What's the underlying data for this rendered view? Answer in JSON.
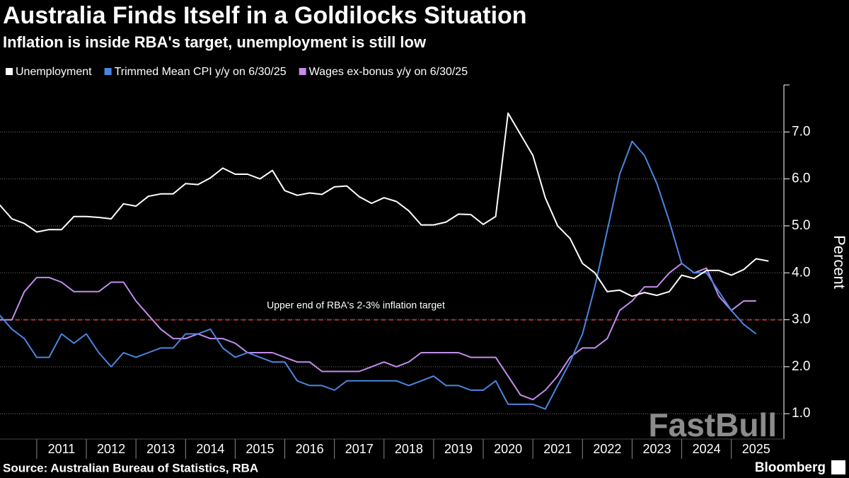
{
  "chart_data": {
    "type": "line",
    "title": "Australia Finds Itself in a Goldilocks Situation",
    "subtitle": "Inflation is inside RBA's target, unemployment is still low",
    "y_axis_label": "Percent",
    "source": "Source: Australian Bureau of Statistics, RBA",
    "brand": "Bloomberg",
    "watermark": "FastBull",
    "target_line": {
      "value": 3,
      "label": "Upper end of RBA's 2-3% inflation target",
      "color": "#b0303a"
    },
    "xlim": [
      2010.26,
      2026.06
    ],
    "xticks": [
      {
        "value": 2011,
        "label": "2011"
      },
      {
        "value": 2012,
        "label": "2012"
      },
      {
        "value": 2013,
        "label": "2013"
      },
      {
        "value": 2014,
        "label": "2014"
      },
      {
        "value": 2015,
        "label": "2015"
      },
      {
        "value": 2016,
        "label": "2016"
      },
      {
        "value": 2017,
        "label": "2017"
      },
      {
        "value": 2018,
        "label": "2018"
      },
      {
        "value": 2019,
        "label": "2019"
      },
      {
        "value": 2020,
        "label": "2020"
      },
      {
        "value": 2021,
        "label": "2021"
      },
      {
        "value": 2022,
        "label": "2022"
      },
      {
        "value": 2023,
        "label": "2023"
      },
      {
        "value": 2024,
        "label": "2024"
      },
      {
        "value": 2025,
        "label": "2025"
      }
    ],
    "ylim": [
      0.46,
      8.0
    ],
    "yticks": [
      {
        "value": 1,
        "label": "1.0"
      },
      {
        "value": 2,
        "label": "2.0"
      },
      {
        "value": 3,
        "label": "3.0"
      },
      {
        "value": 4,
        "label": "4.0"
      },
      {
        "value": 5,
        "label": "5.0"
      },
      {
        "value": 6,
        "label": "6.0"
      },
      {
        "value": 7,
        "label": "7.0"
      }
    ],
    "grid": true,
    "legend": "top-left",
    "x": [
      2010.25,
      2010.5,
      2010.75,
      2011,
      2011.25,
      2011.5,
      2011.75,
      2012,
      2012.25,
      2012.5,
      2012.75,
      2013,
      2013.25,
      2013.5,
      2013.75,
      2014,
      2014.25,
      2014.5,
      2014.75,
      2015,
      2015.25,
      2015.5,
      2015.75,
      2016,
      2016.25,
      2016.5,
      2016.75,
      2017,
      2017.25,
      2017.5,
      2017.75,
      2018,
      2018.25,
      2018.5,
      2018.75,
      2019,
      2019.25,
      2019.5,
      2019.75,
      2020,
      2020.25,
      2020.5,
      2020.75,
      2021,
      2021.25,
      2021.5,
      2021.75,
      2022,
      2022.25,
      2022.5,
      2022.75,
      2023,
      2023.25,
      2023.5,
      2023.75,
      2024,
      2024.25,
      2024.5,
      2024.75,
      2025,
      2025.25,
      2025.5,
      2025.75
    ],
    "series": [
      {
        "name": "Unemployment",
        "color": "#ffffff",
        "values": [
          5.45,
          5.15,
          5.05,
          4.87,
          4.92,
          4.92,
          5.2,
          5.2,
          5.18,
          5.15,
          5.47,
          5.42,
          5.63,
          5.68,
          5.68,
          5.9,
          5.88,
          6.02,
          6.23,
          6.1,
          6.1,
          6.0,
          6.18,
          5.75,
          5.65,
          5.7,
          5.67,
          5.83,
          5.85,
          5.62,
          5.48,
          5.6,
          5.52,
          5.32,
          5.02,
          5.02,
          5.08,
          5.25,
          5.24,
          5.03,
          5.2,
          7.4,
          6.95,
          6.5,
          5.6,
          5.0,
          4.73,
          4.2,
          4.0,
          3.6,
          3.63,
          3.5,
          3.58,
          3.52,
          3.6,
          3.95,
          3.88,
          4.05,
          4.05,
          3.95,
          4.07,
          4.3,
          4.25
        ]
      },
      {
        "name": "Trimmed Mean CPI y/y on 6/30/25",
        "color": "#4a86e0",
        "values": [
          3.1,
          2.8,
          2.6,
          2.2,
          2.2,
          2.7,
          2.5,
          2.7,
          2.3,
          2.0,
          2.3,
          2.2,
          2.3,
          2.4,
          2.4,
          2.7,
          2.7,
          2.8,
          2.4,
          2.2,
          2.3,
          2.2,
          2.1,
          2.1,
          1.7,
          1.6,
          1.6,
          1.5,
          1.7,
          1.7,
          1.7,
          1.7,
          1.7,
          1.6,
          1.7,
          1.8,
          1.6,
          1.6,
          1.5,
          1.5,
          1.7,
          1.2,
          1.2,
          1.2,
          1.1,
          1.6,
          2.1,
          2.7,
          3.7,
          4.9,
          6.1,
          6.8,
          6.5,
          5.9,
          5.1,
          4.2,
          4.0,
          4.0,
          3.6,
          3.2,
          2.9,
          2.7,
          null
        ]
      },
      {
        "name": "Wages ex-bonus y/y on 6/30/25",
        "color": "#c48cec",
        "values": [
          3.0,
          3.0,
          3.6,
          3.9,
          3.9,
          3.8,
          3.6,
          3.6,
          3.6,
          3.8,
          3.8,
          3.4,
          3.1,
          2.8,
          2.6,
          2.6,
          2.7,
          2.6,
          2.6,
          2.5,
          2.3,
          2.3,
          2.3,
          2.2,
          2.1,
          2.1,
          1.9,
          1.9,
          1.9,
          1.9,
          2.0,
          2.1,
          2.0,
          2.1,
          2.3,
          2.3,
          2.3,
          2.3,
          2.2,
          2.2,
          2.2,
          1.8,
          1.4,
          1.3,
          1.5,
          1.8,
          2.2,
          2.4,
          2.4,
          2.6,
          3.2,
          3.4,
          3.7,
          3.7,
          4.0,
          4.2,
          4.0,
          4.1,
          3.5,
          3.2,
          3.4,
          3.4,
          null
        ]
      }
    ]
  }
}
